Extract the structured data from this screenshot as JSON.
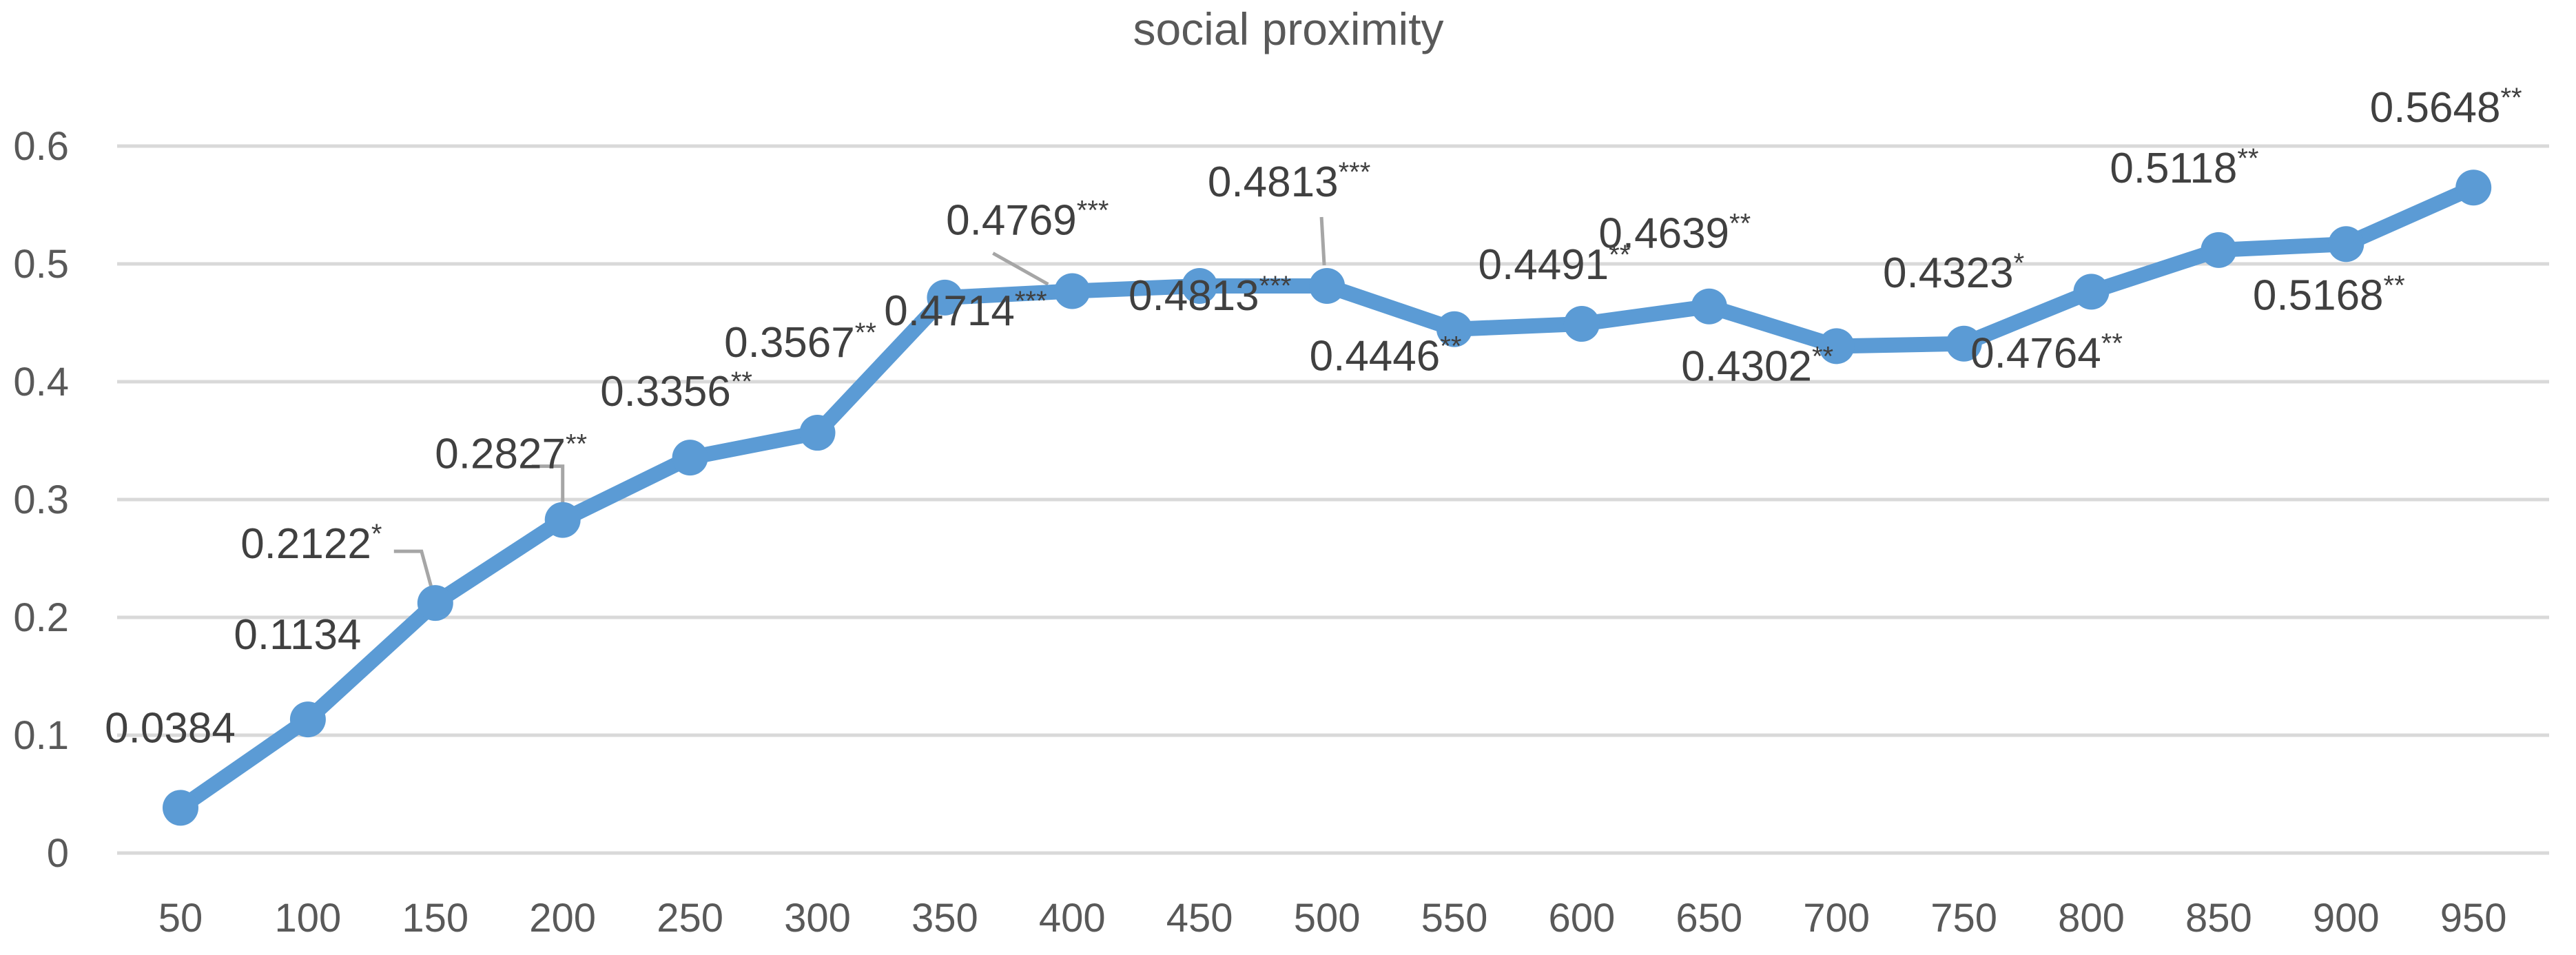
{
  "chart_data": {
    "type": "line",
    "title": "social proximity",
    "xlabel": "",
    "ylabel": "",
    "categories": [
      "50",
      "100",
      "150",
      "200",
      "250",
      "300",
      "350",
      "400",
      "450",
      "500",
      "550",
      "600",
      "650",
      "700",
      "750",
      "800",
      "850",
      "900",
      "950"
    ],
    "series": [
      {
        "values": [
          0.0384,
          0.1134,
          0.2122,
          0.2827,
          0.3356,
          0.3567,
          0.4714,
          0.4769,
          0.4813,
          0.4813,
          0.4446,
          0.4491,
          0.4639,
          0.4302,
          0.4323,
          0.4764,
          0.5118,
          0.5168,
          0.5648
        ],
        "labels": [
          {
            "value": "0.0384",
            "sig": ""
          },
          {
            "value": "0.1134",
            "sig": ""
          },
          {
            "value": "0.2122",
            "sig": "*"
          },
          {
            "value": "0.2827",
            "sig": "**"
          },
          {
            "value": "0.3356",
            "sig": "**"
          },
          {
            "value": "0.3567",
            "sig": "**"
          },
          {
            "value": "0.4714",
            "sig": "***"
          },
          {
            "value": "0.4769",
            "sig": "***"
          },
          {
            "value": "0.4813",
            "sig": "***"
          },
          {
            "value": "0.4813",
            "sig": "***"
          },
          {
            "value": "0.4446",
            "sig": "**"
          },
          {
            "value": "0.4491",
            "sig": "**"
          },
          {
            "value": "0.4639",
            "sig": "**"
          },
          {
            "value": "0.4302",
            "sig": "**"
          },
          {
            "value": "0.4323",
            "sig": "*"
          },
          {
            "value": "0.4764",
            "sig": "**"
          },
          {
            "value": "0.5118",
            "sig": "**"
          },
          {
            "value": "0.5168",
            "sig": "**"
          },
          {
            "value": "0.5648",
            "sig": "**"
          }
        ]
      }
    ],
    "y_ticks": [
      "0",
      "0.1",
      "0.2",
      "0.3",
      "0.4",
      "0.5",
      "0.6"
    ],
    "ylim": [
      0,
      0.6
    ],
    "grid": true,
    "legend": "none",
    "colors": {
      "line": "#5b9bd5",
      "grid": "#d9d9d9",
      "text": "#595959",
      "label": "#404040",
      "leader": "#a6a6a6"
    }
  }
}
